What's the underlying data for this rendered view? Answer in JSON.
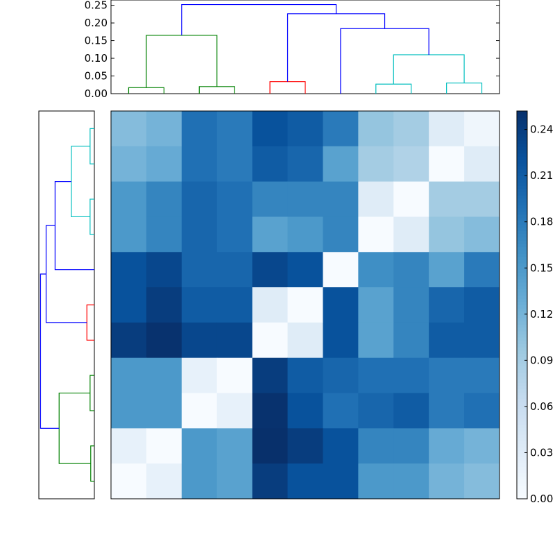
{
  "chart_data": [
    {
      "type": "dendrogram",
      "orientation": "top",
      "leaf_count": 11,
      "ylim": [
        0,
        0.25
      ],
      "yticks": [
        "0.00",
        "0.05",
        "0.10",
        "0.15",
        "0.20",
        "0.25"
      ],
      "links": [
        {
          "left": 0.5,
          "right": 1.5,
          "height": 0.017,
          "color": "#008000"
        },
        {
          "left": 2.5,
          "right": 3.5,
          "height": 0.02,
          "color": "#008000"
        },
        {
          "left": 1.0,
          "right": 3.0,
          "height": 0.165,
          "color": "#008000"
        },
        {
          "left": 4.5,
          "right": 5.5,
          "height": 0.034,
          "color": "#ff0000"
        },
        {
          "left": 7.5,
          "right": 8.5,
          "height": 0.027,
          "color": "#00bfbf"
        },
        {
          "left": 9.5,
          "right": 10.5,
          "height": 0.03,
          "color": "#00bfbf"
        },
        {
          "left": 8.0,
          "right": 10.0,
          "height": 0.11,
          "color": "#00bfbf"
        },
        {
          "left": 6.5,
          "right": 9.0,
          "height": 0.184,
          "color": "#0000ff"
        },
        {
          "left": 5.0,
          "right": 7.75,
          "height": 0.226,
          "color": "#0000ff"
        },
        {
          "left": 2.0,
          "right": 6.375,
          "height": 0.252,
          "color": "#0000ff"
        }
      ]
    },
    {
      "type": "dendrogram",
      "orientation": "left",
      "leaf_count": 11,
      "xlim": [
        0.26,
        0
      ],
      "links": [
        {
          "left": 0.5,
          "right": 1.5,
          "height": 0.02,
          "color": "#00bfbf"
        },
        {
          "left": 2.5,
          "right": 3.5,
          "height": 0.02,
          "color": "#00bfbf"
        },
        {
          "left": 1.0,
          "right": 3.0,
          "height": 0.108,
          "color": "#00bfbf"
        },
        {
          "left": 2.0,
          "right": 4.5,
          "height": 0.184,
          "color": "#0000ff"
        },
        {
          "left": 5.5,
          "right": 6.5,
          "height": 0.035,
          "color": "#ff0000"
        },
        {
          "left": 3.25,
          "right": 6.0,
          "height": 0.226,
          "color": "#0000ff"
        },
        {
          "left": 7.5,
          "right": 8.5,
          "height": 0.02,
          "color": "#008000"
        },
        {
          "left": 9.5,
          "right": 10.5,
          "height": 0.017,
          "color": "#008000"
        },
        {
          "left": 8.0,
          "right": 10.0,
          "height": 0.165,
          "color": "#008000"
        },
        {
          "left": 4.625,
          "right": 9.0,
          "height": 0.252,
          "color": "#0000ff"
        }
      ]
    },
    {
      "type": "heatmap",
      "rows": 11,
      "cols": 11,
      "vmin": 0,
      "vmax": 0.252,
      "colormap": "Blues",
      "values": [
        [
          0.11,
          0.12,
          0.19,
          0.18,
          0.22,
          0.21,
          0.18,
          0.1,
          0.09,
          0.03,
          0.01
        ],
        [
          0.12,
          0.13,
          0.19,
          0.18,
          0.21,
          0.2,
          0.14,
          0.09,
          0.08,
          0.0,
          0.03
        ],
        [
          0.15,
          0.17,
          0.2,
          0.19,
          0.17,
          0.17,
          0.17,
          0.03,
          0.0,
          0.09,
          0.09
        ],
        [
          0.15,
          0.17,
          0.2,
          0.19,
          0.14,
          0.15,
          0.17,
          0.0,
          0.03,
          0.1,
          0.11
        ],
        [
          0.22,
          0.23,
          0.2,
          0.2,
          0.23,
          0.22,
          0.0,
          0.16,
          0.17,
          0.14,
          0.18
        ],
        [
          0.22,
          0.24,
          0.21,
          0.21,
          0.03,
          0.0,
          0.22,
          0.14,
          0.17,
          0.2,
          0.21
        ],
        [
          0.24,
          0.25,
          0.23,
          0.23,
          0.0,
          0.03,
          0.22,
          0.14,
          0.17,
          0.21,
          0.21
        ],
        [
          0.15,
          0.15,
          0.02,
          0.0,
          0.24,
          0.21,
          0.2,
          0.19,
          0.19,
          0.18,
          0.18
        ],
        [
          0.15,
          0.15,
          0.0,
          0.02,
          0.25,
          0.22,
          0.19,
          0.2,
          0.21,
          0.18,
          0.19
        ],
        [
          0.02,
          0.0,
          0.15,
          0.14,
          0.26,
          0.24,
          0.22,
          0.17,
          0.17,
          0.13,
          0.12
        ],
        [
          0.0,
          0.02,
          0.15,
          0.14,
          0.24,
          0.22,
          0.22,
          0.15,
          0.15,
          0.12,
          0.11
        ]
      ]
    },
    {
      "type": "colorbar",
      "colormap": "Blues",
      "range": [
        0,
        0.252
      ],
      "ticks": [
        0,
        0.03,
        0.06,
        0.09,
        0.12,
        0.15,
        0.18,
        0.21,
        0.24
      ],
      "tick_labels": [
        "0.00",
        "0.03",
        "0.06",
        "0.09",
        "0.12",
        "0.15",
        "0.18",
        "0.21",
        "0.24"
      ]
    }
  ]
}
